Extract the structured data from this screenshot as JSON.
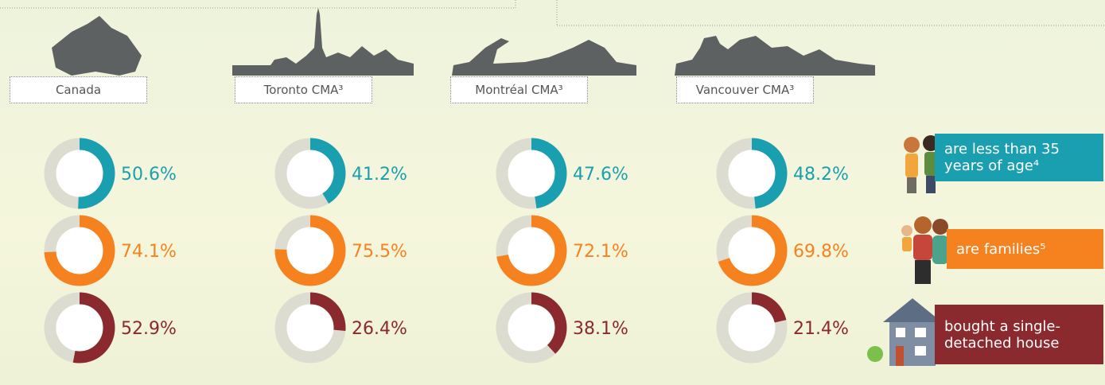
{
  "chart_data": {
    "type": "donut",
    "categories": [
      "Canada",
      "Toronto CMA³",
      "Montréal CMA³",
      "Vancouver CMA³"
    ],
    "series": [
      {
        "name": "are less  than 35 years of age⁴",
        "color": "#1a9fb0",
        "values": [
          50.6,
          41.2,
          47.6,
          48.2
        ],
        "value_labels": [
          "50.6%",
          "41.2%",
          "47.6%",
          "48.2%"
        ]
      },
      {
        "name": "are families⁵",
        "color": "#f5821f",
        "values": [
          74.1,
          75.5,
          72.1,
          69.8
        ],
        "value_labels": [
          "74.1%",
          "75.5%",
          "72.1%",
          "69.8%"
        ]
      },
      {
        "name": "bought a single-detached house",
        "color": "#8b2a2e",
        "values": [
          52.9,
          26.4,
          38.1,
          21.4
        ],
        "value_labels": [
          "52.9%",
          "26.4%",
          "38.1%",
          "21.4%"
        ]
      }
    ],
    "ylim": [
      0,
      100
    ]
  }
}
